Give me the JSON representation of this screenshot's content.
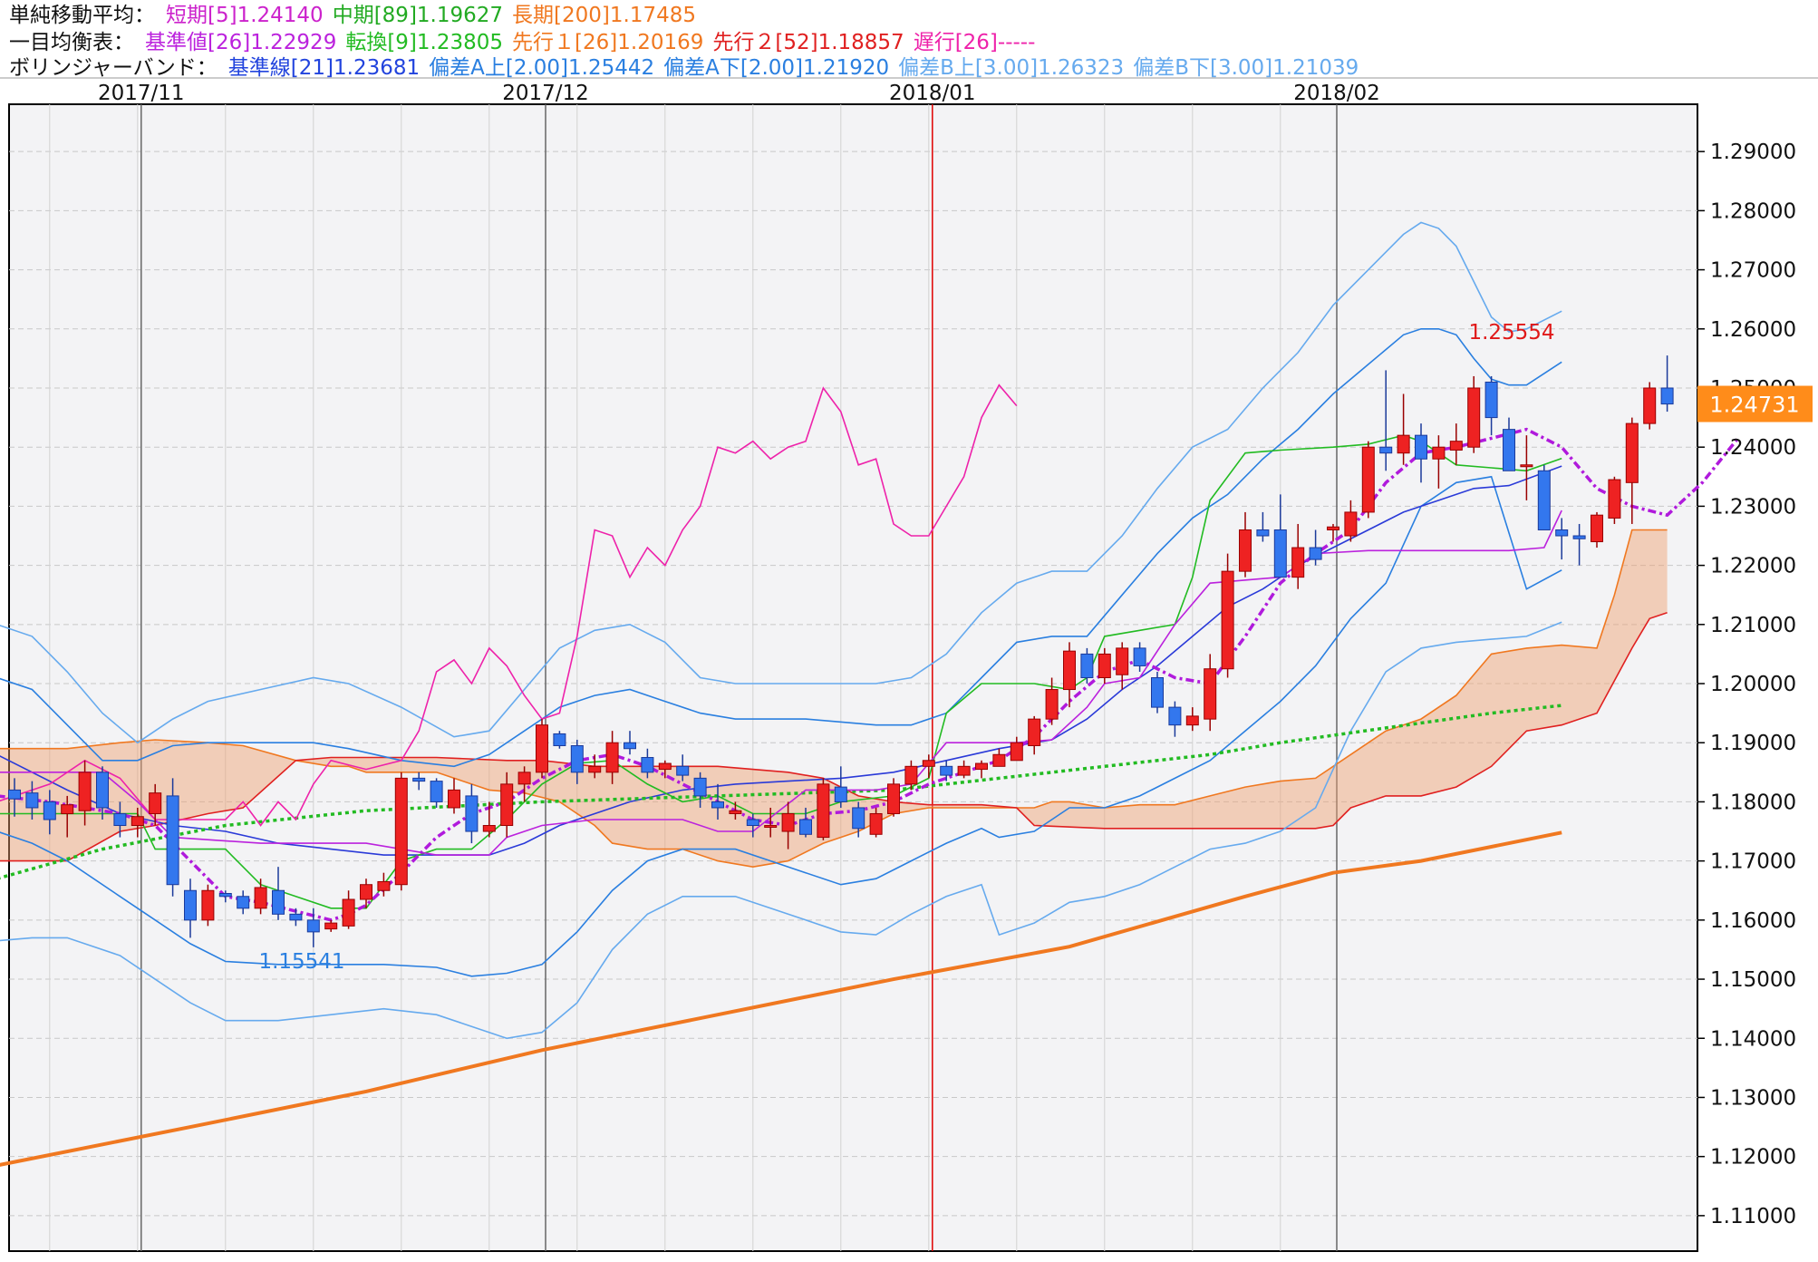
{
  "legends": {
    "sma": {
      "label": "単純移動平均：",
      "items": [
        {
          "text": "短期[5]1.24140",
          "color": "#cc22cc"
        },
        {
          "text": "中期[89]1.19627",
          "color": "#22aa22"
        },
        {
          "text": "長期[200]1.17485",
          "color": "#f07820"
        }
      ]
    },
    "ichimoku": {
      "label": "一目均衡表：",
      "items": [
        {
          "text": "基準値[26]1.22929",
          "color": "#bb22dd"
        },
        {
          "text": "転換[9]1.23805",
          "color": "#22bb22"
        },
        {
          "text": "先行１[26]1.20169",
          "color": "#f07820"
        },
        {
          "text": "先行２[52]1.18857",
          "color": "#e02020"
        },
        {
          "text": "遅行[26]-----",
          "color": "#ee22aa"
        }
      ]
    },
    "bb": {
      "label": "ボリンジャーバンド：",
      "items": [
        {
          "text": "基準線[21]1.23681",
          "color": "#2244dd"
        },
        {
          "text": "偏差A上[2.00]1.25442",
          "color": "#2a7fe0"
        },
        {
          "text": "偏差A下[2.00]1.21920",
          "color": "#2a7fe0"
        },
        {
          "text": "偏差B上[3.00]1.26323",
          "color": "#66aaee"
        },
        {
          "text": "偏差B下[3.00]1.21039",
          "color": "#66aaee"
        }
      ]
    }
  },
  "chart_data": {
    "type": "candlestick",
    "x_labels": [
      "2017/11",
      "2017/12",
      "2018/01",
      "2018/02"
    ],
    "x_label_index": [
      7,
      30,
      52,
      75
    ],
    "ylim": [
      1.104,
      1.298
    ],
    "y_ticks": [
      "1.29000",
      "1.28000",
      "1.27000",
      "1.26000",
      "1.25000",
      "1.24000",
      "1.23000",
      "1.22000",
      "1.21000",
      "1.20000",
      "1.19000",
      "1.18000",
      "1.17000",
      "1.16000",
      "1.15000",
      "1.14000",
      "1.13000",
      "1.12000",
      "1.11000"
    ],
    "current_price": "1.24731",
    "high_label": "1.25554",
    "low_label": "1.15541",
    "candles": [
      [
        1.182,
        1.184,
        1.1775,
        1.1805
      ],
      [
        1.1815,
        1.1835,
        1.177,
        1.179
      ],
      [
        1.18,
        1.182,
        1.1745,
        1.177
      ],
      [
        1.178,
        1.181,
        1.174,
        1.1795
      ],
      [
        1.1785,
        1.187,
        1.176,
        1.185
      ],
      [
        1.185,
        1.186,
        1.177,
        1.179
      ],
      [
        1.178,
        1.18,
        1.174,
        1.176
      ],
      [
        1.176,
        1.179,
        1.174,
        1.1775
      ],
      [
        1.178,
        1.183,
        1.176,
        1.1815
      ],
      [
        1.181,
        1.184,
        1.164,
        1.166
      ],
      [
        1.165,
        1.167,
        1.157,
        1.16
      ],
      [
        1.16,
        1.166,
        1.159,
        1.165
      ],
      [
        1.1645,
        1.165,
        1.163,
        1.164
      ],
      [
        1.164,
        1.165,
        1.161,
        1.162
      ],
      [
        1.162,
        1.167,
        1.161,
        1.1655
      ],
      [
        1.165,
        1.169,
        1.16,
        1.161
      ],
      [
        1.161,
        1.162,
        1.159,
        1.16
      ],
      [
        1.16,
        1.162,
        1.1554,
        1.158
      ],
      [
        1.1585,
        1.16,
        1.158,
        1.1595
      ],
      [
        1.159,
        1.165,
        1.1585,
        1.1635
      ],
      [
        1.1635,
        1.167,
        1.162,
        1.166
      ],
      [
        1.165,
        1.168,
        1.164,
        1.1665
      ],
      [
        1.166,
        1.185,
        1.165,
        1.184
      ],
      [
        1.184,
        1.185,
        1.182,
        1.1835
      ],
      [
        1.1835,
        1.184,
        1.179,
        1.18
      ],
      [
        1.179,
        1.184,
        1.178,
        1.182
      ],
      [
        1.181,
        1.183,
        1.173,
        1.175
      ],
      [
        1.175,
        1.18,
        1.174,
        1.176
      ],
      [
        1.176,
        1.185,
        1.174,
        1.183
      ],
      [
        1.183,
        1.186,
        1.18,
        1.185
      ],
      [
        1.185,
        1.194,
        1.184,
        1.193
      ],
      [
        1.1915,
        1.192,
        1.189,
        1.1895
      ],
      [
        1.1895,
        1.1905,
        1.183,
        1.185
      ],
      [
        1.185,
        1.188,
        1.184,
        1.186
      ],
      [
        1.185,
        1.192,
        1.183,
        1.19
      ],
      [
        1.19,
        1.192,
        1.188,
        1.189
      ],
      [
        1.1875,
        1.189,
        1.184,
        1.185
      ],
      [
        1.1855,
        1.187,
        1.184,
        1.1865
      ],
      [
        1.186,
        1.188,
        1.1835,
        1.1845
      ],
      [
        1.184,
        1.185,
        1.179,
        1.181
      ],
      [
        1.18,
        1.183,
        1.177,
        1.179
      ],
      [
        1.178,
        1.18,
        1.177,
        1.1785
      ],
      [
        1.177,
        1.178,
        1.174,
        1.176
      ],
      [
        1.176,
        1.179,
        1.174,
        1.176
      ],
      [
        1.175,
        1.18,
        1.172,
        1.178
      ],
      [
        1.177,
        1.179,
        1.174,
        1.1745
      ],
      [
        1.174,
        1.184,
        1.1735,
        1.183
      ],
      [
        1.1825,
        1.186,
        1.179,
        1.18
      ],
      [
        1.179,
        1.18,
        1.174,
        1.1755
      ],
      [
        1.1745,
        1.179,
        1.174,
        1.178
      ],
      [
        1.178,
        1.184,
        1.1775,
        1.183
      ],
      [
        1.183,
        1.187,
        1.182,
        1.186
      ],
      [
        1.186,
        1.188,
        1.184,
        1.187
      ],
      [
        1.186,
        1.187,
        1.1835,
        1.1845
      ],
      [
        1.1845,
        1.187,
        1.184,
        1.186
      ],
      [
        1.1855,
        1.187,
        1.184,
        1.1865
      ],
      [
        1.186,
        1.189,
        1.186,
        1.188
      ],
      [
        1.187,
        1.191,
        1.187,
        1.19
      ],
      [
        1.1895,
        1.1945,
        1.188,
        1.194
      ],
      [
        1.194,
        1.201,
        1.193,
        1.199
      ],
      [
        1.199,
        1.207,
        1.196,
        1.2055
      ],
      [
        1.205,
        1.206,
        1.2,
        1.201
      ],
      [
        1.201,
        1.206,
        1.2,
        1.205
      ],
      [
        1.2015,
        1.207,
        1.199,
        1.206
      ],
      [
        1.206,
        1.207,
        1.202,
        1.203
      ],
      [
        1.201,
        1.202,
        1.195,
        1.196
      ],
      [
        1.196,
        1.197,
        1.191,
        1.193
      ],
      [
        1.193,
        1.196,
        1.192,
        1.1945
      ],
      [
        1.194,
        1.205,
        1.192,
        1.2025
      ],
      [
        1.2025,
        1.222,
        1.201,
        1.219
      ],
      [
        1.219,
        1.229,
        1.218,
        1.226
      ],
      [
        1.226,
        1.229,
        1.224,
        1.225
      ],
      [
        1.226,
        1.232,
        1.218,
        1.218
      ],
      [
        1.218,
        1.227,
        1.216,
        1.223
      ],
      [
        1.223,
        1.226,
        1.22,
        1.221
      ],
      [
        1.226,
        1.227,
        1.224,
        1.2265
      ],
      [
        1.225,
        1.231,
        1.224,
        1.229
      ],
      [
        1.229,
        1.241,
        1.228,
        1.24
      ],
      [
        1.24,
        1.253,
        1.236,
        1.239
      ],
      [
        1.239,
        1.249,
        1.237,
        1.242
      ],
      [
        1.242,
        1.244,
        1.234,
        1.238
      ],
      [
        1.238,
        1.242,
        1.233,
        1.24
      ],
      [
        1.2395,
        1.244,
        1.237,
        1.241
      ],
      [
        1.24,
        1.252,
        1.239,
        1.25
      ],
      [
        1.251,
        1.252,
        1.242,
        1.245
      ],
      [
        1.243,
        1.245,
        1.236,
        1.236
      ],
      [
        1.237,
        1.242,
        1.231,
        1.237
      ],
      [
        1.236,
        1.237,
        1.226,
        1.226
      ],
      [
        1.226,
        1.228,
        1.221,
        1.225
      ],
      [
        1.225,
        1.227,
        1.22,
        1.2245
      ],
      [
        1.224,
        1.229,
        1.223,
        1.2285
      ],
      [
        1.228,
        1.235,
        1.227,
        1.2345
      ],
      [
        1.234,
        1.245,
        1.227,
        1.244
      ],
      [
        1.244,
        1.251,
        1.243,
        1.25
      ],
      [
        1.25,
        1.2555,
        1.246,
        1.2473
      ]
    ]
  }
}
